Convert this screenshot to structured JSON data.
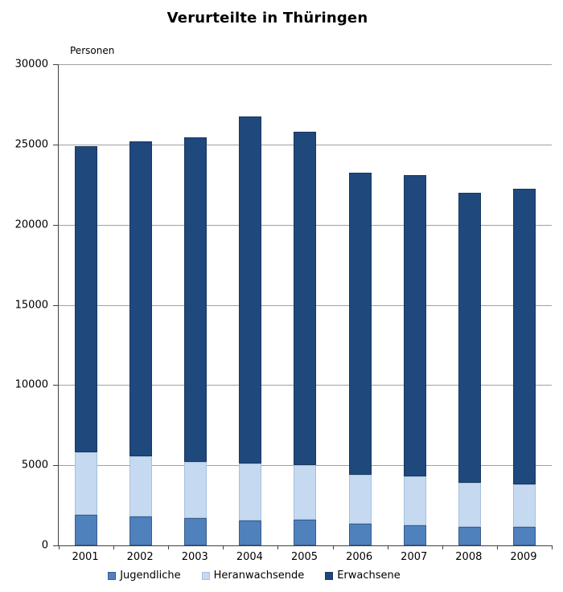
{
  "chart_data": {
    "type": "bar",
    "stacked": true,
    "title": "Verurteilte in Thüringen",
    "unit_label": "Personen",
    "categories": [
      "2001",
      "2002",
      "2003",
      "2004",
      "2005",
      "2006",
      "2007",
      "2008",
      "2009"
    ],
    "series": [
      {
        "name": "Jugendliche",
        "color": "#4f81bd",
        "border_color": "#385d8a",
        "values": [
          1900,
          1800,
          1700,
          1550,
          1600,
          1350,
          1250,
          1150,
          1150
        ]
      },
      {
        "name": "Heranwachsende",
        "color": "#c5d9f1",
        "border_color": "#a7bfde",
        "values": [
          3900,
          3750,
          3500,
          3550,
          3400,
          3050,
          3050,
          2750,
          2650
        ]
      },
      {
        "name": "Erwachsene",
        "color": "#1f497d",
        "border_color": "#17365d",
        "values": [
          19100,
          19650,
          20250,
          21650,
          20800,
          18850,
          18800,
          18100,
          18450
        ]
      }
    ],
    "totals": [
      24900,
      25200,
      25450,
      26750,
      25800,
      23250,
      23100,
      22000,
      22250
    ],
    "ylim": [
      0,
      30000
    ],
    "ytick_step": 5000,
    "ytick_labels": [
      "0",
      "5000",
      "10000",
      "15000",
      "20000",
      "25000",
      "30000"
    ],
    "grid": true,
    "legend_position": "bottom",
    "colors": {
      "gridline": "#a0a0a0",
      "axis": "#404040",
      "text": "#000000",
      "background": "#ffffff"
    }
  }
}
